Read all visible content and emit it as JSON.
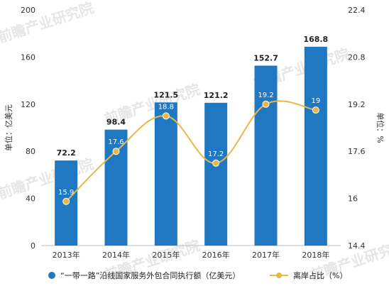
{
  "chart_data": {
    "type": "bar+line",
    "categories": [
      "2013年",
      "2014年",
      "2015年",
      "2016年",
      "2017年",
      "2018年"
    ],
    "series": [
      {
        "name": "“一带一路”沿线国家服务外包合同执行额（亿美元）",
        "type": "bar",
        "axis": "left",
        "values": [
          72.2,
          98.4,
          121.5,
          121.2,
          152.7,
          168.8
        ],
        "color": "#1f78c1"
      },
      {
        "name": "离岸占比（%）",
        "type": "line",
        "axis": "right",
        "values": [
          15.9,
          17.6,
          18.8,
          17.2,
          19.2,
          19
        ],
        "color": "#e6b84a"
      }
    ],
    "ylabel": "单位：亿美元",
    "y2label": "单位：%",
    "ylim": [
      0,
      200
    ],
    "yticks": [
      "0",
      "40",
      "80",
      "120",
      "160",
      "200"
    ],
    "y2lim": [
      14.4,
      22.4
    ],
    "y2ticks": [
      "14.4",
      "16",
      "17.6",
      "19.2",
      "20.8",
      "22.4"
    ],
    "grid": false,
    "legend": "bottom"
  },
  "watermark": {
    "text": "前瞻产业研究院"
  }
}
